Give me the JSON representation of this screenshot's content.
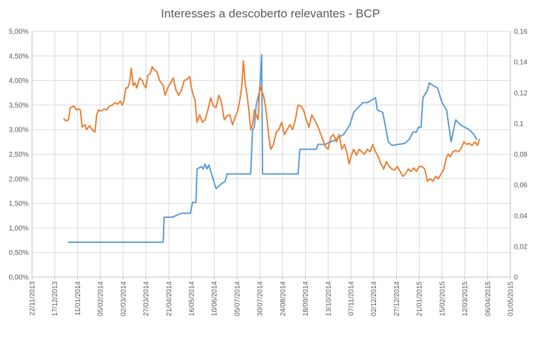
{
  "chart_data": {
    "type": "line",
    "title": "Interesses a descoberto relevantes - BCP",
    "xlabel": "",
    "ylabel": "",
    "y2label": "",
    "grid": true,
    "legend": "none",
    "x_ticks": [
      "22/11/2013",
      "17/12/2013",
      "11/01/2014",
      "05/02/2014",
      "02/03/2014",
      "27/03/2014",
      "21/04/2014",
      "16/05/2014",
      "10/06/2014",
      "05/07/2014",
      "30/07/2014",
      "24/08/2014",
      "18/09/2014",
      "13/10/2014",
      "07/11/2014",
      "02/12/2014",
      "27/12/2014",
      "21/01/2015",
      "15/02/2015",
      "12/03/2015",
      "06/04/2015",
      "01/05/2015"
    ],
    "x_range": [
      "22/11/2013",
      "01/05/2015"
    ],
    "y_left_ticks": [
      "0,00%",
      "0,50%",
      "1,00%",
      "1,50%",
      "2,00%",
      "2,50%",
      "3,00%",
      "3,50%",
      "4,00%",
      "4,50%",
      "5,00%"
    ],
    "y_left_range": [
      0,
      5
    ],
    "y_right_ticks": [
      "0",
      "0,02",
      "0,04",
      "0,06",
      "0,08",
      "0,1",
      "0,12",
      "0,14",
      "0,16"
    ],
    "y_right_range": [
      0,
      0.16
    ],
    "colors": {
      "blue": "#5B9BD5",
      "orange": "#ED7D31",
      "grid": "#D9D9D9",
      "text": "#595959"
    },
    "series": [
      {
        "axis": "left",
        "color": "#5B9BD5",
        "points": [
          [
            "2014-01-01",
            0.71
          ],
          [
            "2014-04-15",
            0.71
          ],
          [
            "2014-04-16",
            1.22
          ],
          [
            "2014-04-25",
            1.22
          ],
          [
            "2014-05-05",
            1.3
          ],
          [
            "2014-05-15",
            1.3
          ],
          [
            "2014-05-17",
            1.52
          ],
          [
            "2014-05-21",
            1.52
          ],
          [
            "2014-05-22",
            2.2
          ],
          [
            "2014-05-27",
            2.25
          ],
          [
            "2014-05-29",
            2.2
          ],
          [
            "2014-05-31",
            2.3
          ],
          [
            "2014-06-02",
            2.2
          ],
          [
            "2014-06-04",
            2.28
          ],
          [
            "2014-06-12",
            1.8
          ],
          [
            "2014-06-18",
            1.9
          ],
          [
            "2014-06-22",
            1.95
          ],
          [
            "2014-06-24",
            2.1
          ],
          [
            "2014-06-28",
            2.1
          ],
          [
            "2014-07-20",
            2.1
          ],
          [
            "2014-07-22",
            3.0
          ],
          [
            "2014-07-24",
            3.05
          ],
          [
            "2014-07-26",
            3.5
          ],
          [
            "2014-07-30",
            3.8
          ],
          [
            "2014-08-01",
            4.53
          ],
          [
            "2014-08-02",
            2.1
          ],
          [
            "2014-09-10",
            2.1
          ],
          [
            "2014-09-12",
            2.6
          ],
          [
            "2014-09-30",
            2.6
          ],
          [
            "2014-10-02",
            2.7
          ],
          [
            "2014-10-10",
            2.7
          ],
          [
            "2014-10-15",
            2.75
          ],
          [
            "2014-10-20",
            2.78
          ],
          [
            "2014-10-25",
            2.85
          ],
          [
            "2014-10-30",
            2.9
          ],
          [
            "2014-11-06",
            3.1
          ],
          [
            "2014-11-10",
            3.35
          ],
          [
            "2014-11-20",
            3.55
          ],
          [
            "2014-11-25",
            3.55
          ],
          [
            "2014-12-04",
            3.65
          ],
          [
            "2014-12-06",
            3.4
          ],
          [
            "2014-12-12",
            3.35
          ],
          [
            "2014-12-18",
            2.75
          ],
          [
            "2014-12-22",
            2.68
          ],
          [
            "2015-01-05",
            2.72
          ],
          [
            "2015-01-10",
            2.8
          ],
          [
            "2015-01-14",
            2.95
          ],
          [
            "2015-01-18",
            2.95
          ],
          [
            "2015-01-20",
            3.05
          ],
          [
            "2015-01-23",
            3.05
          ],
          [
            "2015-01-25",
            3.65
          ],
          [
            "2015-01-30",
            3.8
          ],
          [
            "2015-02-01",
            3.95
          ],
          [
            "2015-02-05",
            3.9
          ],
          [
            "2015-02-10",
            3.85
          ],
          [
            "2015-02-15",
            3.55
          ],
          [
            "2015-02-20",
            3.4
          ],
          [
            "2015-02-25",
            2.75
          ],
          [
            "2015-03-02",
            3.2
          ],
          [
            "2015-03-07",
            3.1
          ],
          [
            "2015-03-12",
            3.05
          ],
          [
            "2015-03-17",
            3.0
          ],
          [
            "2015-03-22",
            2.9
          ],
          [
            "2015-03-25",
            2.8
          ]
        ]
      },
      {
        "axis": "left",
        "color": "#ED7D31",
        "points": [
          [
            "2013-12-27",
            3.22
          ],
          [
            "2013-12-29",
            3.18
          ],
          [
            "2014-01-01",
            3.2
          ],
          [
            "2014-01-03",
            3.45
          ],
          [
            "2014-01-07",
            3.48
          ],
          [
            "2014-01-10",
            3.4
          ],
          [
            "2014-01-12",
            3.42
          ],
          [
            "2014-01-14",
            3.4
          ],
          [
            "2014-01-16",
            3.05
          ],
          [
            "2014-01-19",
            3.1
          ],
          [
            "2014-01-21",
            3.0
          ],
          [
            "2014-01-24",
            3.08
          ],
          [
            "2014-01-27",
            3.0
          ],
          [
            "2014-01-30",
            2.95
          ],
          [
            "2014-02-01",
            3.3
          ],
          [
            "2014-02-03",
            3.4
          ],
          [
            "2014-02-06",
            3.38
          ],
          [
            "2014-02-09",
            3.42
          ],
          [
            "2014-02-12",
            3.4
          ],
          [
            "2014-02-15",
            3.48
          ],
          [
            "2014-02-18",
            3.5
          ],
          [
            "2014-02-21",
            3.55
          ],
          [
            "2014-02-24",
            3.52
          ],
          [
            "2014-02-27",
            3.58
          ],
          [
            "2014-03-01",
            3.5
          ],
          [
            "2014-03-03",
            3.6
          ],
          [
            "2014-03-05",
            3.85
          ],
          [
            "2014-03-07",
            3.85
          ],
          [
            "2014-03-09",
            3.95
          ],
          [
            "2014-03-11",
            4.25
          ],
          [
            "2014-03-13",
            3.9
          ],
          [
            "2014-03-15",
            3.95
          ],
          [
            "2014-03-17",
            3.85
          ],
          [
            "2014-03-20",
            4.05
          ],
          [
            "2014-03-23",
            4.0
          ],
          [
            "2014-03-25",
            3.9
          ],
          [
            "2014-03-27",
            3.85
          ],
          [
            "2014-03-29",
            4.1
          ],
          [
            "2014-04-01",
            4.15
          ],
          [
            "2014-04-03",
            4.28
          ],
          [
            "2014-04-05",
            4.22
          ],
          [
            "2014-04-08",
            4.18
          ],
          [
            "2014-04-11",
            4.0
          ],
          [
            "2014-04-13",
            3.95
          ],
          [
            "2014-04-15",
            3.9
          ],
          [
            "2014-04-17",
            3.7
          ],
          [
            "2014-04-20",
            3.85
          ],
          [
            "2014-04-23",
            3.95
          ],
          [
            "2014-04-26",
            4.05
          ],
          [
            "2014-04-29",
            3.8
          ],
          [
            "2014-05-02",
            3.7
          ],
          [
            "2014-05-05",
            3.8
          ],
          [
            "2014-05-08",
            4.0
          ],
          [
            "2014-05-11",
            4.02
          ],
          [
            "2014-05-14",
            4.08
          ],
          [
            "2014-05-16",
            3.85
          ],
          [
            "2014-05-18",
            3.7
          ],
          [
            "2014-05-20",
            3.6
          ],
          [
            "2014-05-22",
            3.15
          ],
          [
            "2014-05-25",
            3.3
          ],
          [
            "2014-05-28",
            3.15
          ],
          [
            "2014-05-31",
            3.2
          ],
          [
            "2014-06-03",
            3.4
          ],
          [
            "2014-06-06",
            3.65
          ],
          [
            "2014-06-09",
            3.48
          ],
          [
            "2014-06-12",
            3.45
          ],
          [
            "2014-06-15",
            3.7
          ],
          [
            "2014-06-18",
            3.55
          ],
          [
            "2014-06-21",
            3.2
          ],
          [
            "2014-06-24",
            3.28
          ],
          [
            "2014-06-27",
            3.3
          ],
          [
            "2014-06-30",
            3.1
          ],
          [
            "2014-07-03",
            3.25
          ],
          [
            "2014-07-06",
            3.4
          ],
          [
            "2014-07-08",
            3.6
          ],
          [
            "2014-07-10",
            3.85
          ],
          [
            "2014-07-12",
            4.4
          ],
          [
            "2014-07-14",
            3.95
          ],
          [
            "2014-07-16",
            3.7
          ],
          [
            "2014-07-18",
            3.4
          ],
          [
            "2014-07-20",
            3.0
          ],
          [
            "2014-07-22",
            3.1
          ],
          [
            "2014-07-24",
            3.4
          ],
          [
            "2014-07-26",
            3.3
          ],
          [
            "2014-07-28",
            3.2
          ],
          [
            "2014-07-30",
            3.9
          ],
          [
            "2014-08-01",
            3.78
          ],
          [
            "2014-08-03",
            3.7
          ],
          [
            "2014-08-05",
            3.5
          ],
          [
            "2014-08-07",
            3.2
          ],
          [
            "2014-08-09",
            2.85
          ],
          [
            "2014-08-11",
            2.6
          ],
          [
            "2014-08-14",
            2.7
          ],
          [
            "2014-08-17",
            2.95
          ],
          [
            "2014-08-20",
            3.0
          ],
          [
            "2014-08-23",
            3.15
          ],
          [
            "2014-08-26",
            2.9
          ],
          [
            "2014-08-29",
            3.0
          ],
          [
            "2014-09-01",
            3.1
          ],
          [
            "2014-09-04",
            3.0
          ],
          [
            "2014-09-07",
            3.2
          ],
          [
            "2014-09-10",
            3.5
          ],
          [
            "2014-09-13",
            3.48
          ],
          [
            "2014-09-16",
            3.4
          ],
          [
            "2014-09-19",
            3.2
          ],
          [
            "2014-09-22",
            3.05
          ],
          [
            "2014-09-25",
            3.3
          ],
          [
            "2014-09-28",
            3.2
          ],
          [
            "2014-10-01",
            3.1
          ],
          [
            "2014-10-04",
            2.95
          ],
          [
            "2014-10-07",
            2.8
          ],
          [
            "2014-10-10",
            2.65
          ],
          [
            "2014-10-13",
            2.6
          ],
          [
            "2014-10-16",
            2.85
          ],
          [
            "2014-10-19",
            2.9
          ],
          [
            "2014-10-22",
            2.75
          ],
          [
            "2014-10-25",
            2.9
          ],
          [
            "2014-10-28",
            2.6
          ],
          [
            "2014-10-31",
            2.7
          ],
          [
            "2014-11-03",
            2.5
          ],
          [
            "2014-11-05",
            2.3
          ],
          [
            "2014-11-07",
            2.45
          ],
          [
            "2014-11-10",
            2.6
          ],
          [
            "2014-11-13",
            2.48
          ],
          [
            "2014-11-16",
            2.6
          ],
          [
            "2014-11-19",
            2.55
          ],
          [
            "2014-11-22",
            2.5
          ],
          [
            "2014-11-25",
            2.6
          ],
          [
            "2014-11-28",
            2.55
          ],
          [
            "2014-12-01",
            2.7
          ],
          [
            "2014-12-04",
            2.55
          ],
          [
            "2014-12-07",
            2.45
          ],
          [
            "2014-12-10",
            2.3
          ],
          [
            "2014-12-13",
            2.2
          ],
          [
            "2014-12-16",
            2.35
          ],
          [
            "2014-12-19",
            2.25
          ],
          [
            "2014-12-22",
            2.2
          ],
          [
            "2014-12-25",
            2.18
          ],
          [
            "2014-12-28",
            2.25
          ],
          [
            "2014-12-31",
            2.15
          ],
          [
            "2015-01-03",
            2.05
          ],
          [
            "2015-01-06",
            2.1
          ],
          [
            "2015-01-09",
            2.2
          ],
          [
            "2015-01-12",
            2.15
          ],
          [
            "2015-01-15",
            2.22
          ],
          [
            "2015-01-18",
            2.15
          ],
          [
            "2015-01-21",
            2.25
          ],
          [
            "2015-01-24",
            2.25
          ],
          [
            "2015-01-27",
            2.2
          ],
          [
            "2015-01-30",
            1.95
          ],
          [
            "2015-02-02",
            2.0
          ],
          [
            "2015-02-05",
            1.95
          ],
          [
            "2015-02-08",
            2.05
          ],
          [
            "2015-02-11",
            2.0
          ],
          [
            "2015-02-14",
            2.1
          ],
          [
            "2015-02-17",
            2.2
          ],
          [
            "2015-02-20",
            2.45
          ],
          [
            "2015-02-22",
            2.5
          ],
          [
            "2015-02-24",
            2.45
          ],
          [
            "2015-02-27",
            2.55
          ],
          [
            "2015-03-02",
            2.58
          ],
          [
            "2015-03-05",
            2.55
          ],
          [
            "2015-03-08",
            2.62
          ],
          [
            "2015-03-11",
            2.75
          ],
          [
            "2015-03-14",
            2.7
          ],
          [
            "2015-03-17",
            2.72
          ],
          [
            "2015-03-20",
            2.68
          ],
          [
            "2015-03-23",
            2.75
          ],
          [
            "2015-03-26",
            2.68
          ],
          [
            "2015-03-28",
            2.8
          ]
        ]
      }
    ]
  }
}
